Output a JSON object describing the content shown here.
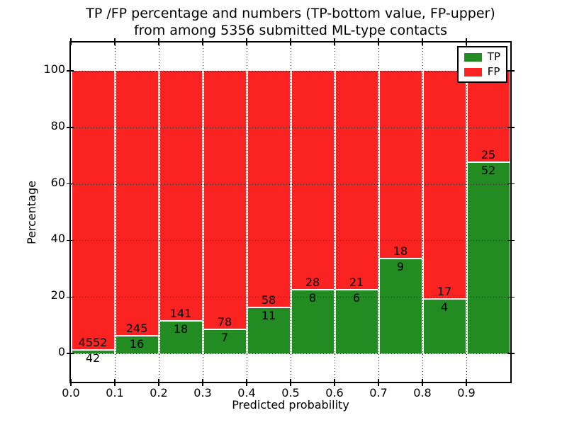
{
  "title": {
    "line1": "TP /FP percentage and numbers (TP-bottom value, FP-upper)",
    "line2": "from among 5356 submitted ML-type contacts"
  },
  "axes": {
    "ylabel": "Percentage",
    "xlabel": "Predicted probability",
    "y_ticks": [
      0,
      20,
      40,
      60,
      80,
      100
    ],
    "x_tick_labels": [
      "0.0",
      "0.1",
      "0.2",
      "0.3",
      "0.4",
      "0.5",
      "0.6",
      "0.7",
      "0.8",
      "0.9"
    ],
    "ylim": [
      -10,
      110
    ],
    "xlim": [
      0.0,
      1.0
    ],
    "grid": true
  },
  "legend": {
    "position": "upper-right",
    "entries": [
      {
        "label": "TP",
        "color": "#228b22"
      },
      {
        "label": "FP",
        "color": "#fb2222"
      }
    ]
  },
  "chart_data": {
    "type": "bar",
    "stacked": true,
    "normalized_to_percent": true,
    "title": "TP /FP percentage and numbers (TP-bottom value, FP-upper) from among 5356 submitted ML-type contacts",
    "xlabel": "Predicted probability",
    "ylabel": "Percentage",
    "bin_width": 0.1,
    "bin_starts": [
      0.0,
      0.1,
      0.2,
      0.3,
      0.4,
      0.5,
      0.6,
      0.7,
      0.8,
      0.9
    ],
    "series": [
      {
        "name": "TP",
        "color": "#228b22",
        "counts": [
          42,
          16,
          18,
          7,
          11,
          8,
          6,
          9,
          4,
          52
        ]
      },
      {
        "name": "FP",
        "color": "#fb2222",
        "counts": [
          4552,
          245,
          141,
          78,
          58,
          28,
          21,
          18,
          17,
          25
        ]
      }
    ],
    "tp_percent": [
      0.91,
      6.13,
      11.32,
      8.24,
      15.94,
      22.22,
      22.22,
      33.33,
      19.05,
      67.53
    ],
    "total_contacts": 5356,
    "ylim": [
      -10,
      110
    ],
    "xlim": [
      0.0,
      1.0
    ]
  }
}
